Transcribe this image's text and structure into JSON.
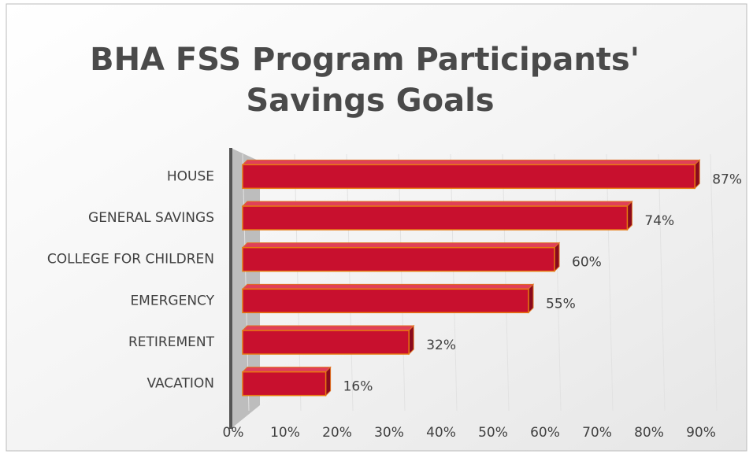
{
  "chart_data": {
    "type": "bar",
    "orientation": "horizontal",
    "title": "BHA FSS Program Participants' Savings Goals",
    "categories": [
      "HOUSE",
      "GENERAL SAVINGS",
      "COLLEGE FOR CHILDREN",
      "EMERGENCY",
      "RETIREMENT",
      "VACATION"
    ],
    "values": [
      87,
      74,
      60,
      55,
      32,
      16
    ],
    "value_labels": [
      "87%",
      "74%",
      "60%",
      "55%",
      "32%",
      "16%"
    ],
    "color": "#c8102e",
    "xlim": [
      0,
      90
    ],
    "xticks": [
      {
        "value": 0,
        "label": "0%"
      },
      {
        "value": 10,
        "label": "10%"
      },
      {
        "value": 20,
        "label": "20%"
      },
      {
        "value": 30,
        "label": "30%"
      },
      {
        "value": 40,
        "label": "40%"
      },
      {
        "value": 50,
        "label": "50%"
      },
      {
        "value": 60,
        "label": "60%"
      },
      {
        "value": 70,
        "label": "70%"
      },
      {
        "value": 80,
        "label": "80%"
      },
      {
        "value": 90,
        "label": "90%"
      }
    ],
    "grid": true
  }
}
